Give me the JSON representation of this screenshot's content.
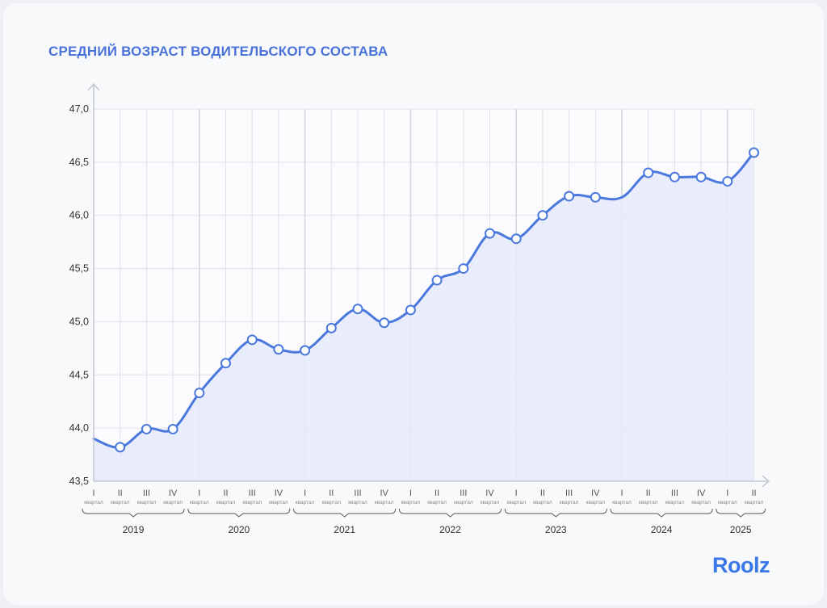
{
  "title": "СРЕДНИЙ ВОЗРАСТ ВОДИТЕЛЬСКОГО СОСТАВА",
  "logo": "Roolz",
  "colors": {
    "line": "#4a78dd",
    "area": "#e5eafb",
    "grid": "#dfe2e8",
    "axis": "#c3c8d1",
    "text": "#333333",
    "title": "#4a72d9",
    "brand": "#3b78e7"
  },
  "chart_data": {
    "type": "area",
    "title": "СРЕДНИЙ ВОЗРАСТ ВОДИТЕЛЬСКОГО СОСТАВА",
    "xlabel": "",
    "ylabel": "",
    "ylim": [
      43.5,
      47.0
    ],
    "yticks": [
      "43,5",
      "44,0",
      "44,5",
      "45,0",
      "45,5",
      "46,0",
      "46,5",
      "47,0"
    ],
    "grid": true,
    "quarter_sublabel": "квартал",
    "categories": [
      {
        "quarter": "I",
        "year": "2019"
      },
      {
        "quarter": "II",
        "year": "2019"
      },
      {
        "quarter": "III",
        "year": "2019"
      },
      {
        "quarter": "IV",
        "year": "2019"
      },
      {
        "quarter": "I",
        "year": "2020"
      },
      {
        "quarter": "II",
        "year": "2020"
      },
      {
        "quarter": "III",
        "year": "2020"
      },
      {
        "quarter": "IV",
        "year": "2020"
      },
      {
        "quarter": "I",
        "year": "2021"
      },
      {
        "quarter": "II",
        "year": "2021"
      },
      {
        "quarter": "III",
        "year": "2021"
      },
      {
        "quarter": "IV",
        "year": "2021"
      },
      {
        "quarter": "I",
        "year": "2022"
      },
      {
        "quarter": "II",
        "year": "2022"
      },
      {
        "quarter": "III",
        "year": "2022"
      },
      {
        "quarter": "IV",
        "year": "2022"
      },
      {
        "quarter": "I",
        "year": "2023"
      },
      {
        "quarter": "II",
        "year": "2023"
      },
      {
        "quarter": "III",
        "year": "2023"
      },
      {
        "quarter": "IV",
        "year": "2023"
      },
      {
        "quarter": "I",
        "year": "2024"
      },
      {
        "quarter": "II",
        "year": "2024"
      },
      {
        "quarter": "III",
        "year": "2024"
      },
      {
        "quarter": "IV",
        "year": "2024"
      },
      {
        "quarter": "I",
        "year": "2025"
      },
      {
        "quarter": "II",
        "year": "2025"
      }
    ],
    "years": [
      "2019",
      "2020",
      "2021",
      "2022",
      "2023",
      "2024",
      "2025"
    ],
    "values": [
      43.9,
      43.82,
      43.99,
      43.99,
      44.33,
      44.61,
      44.83,
      44.74,
      44.73,
      44.94,
      45.12,
      44.99,
      45.11,
      45.39,
      45.5,
      45.83,
      45.78,
      46.0,
      46.18,
      46.17,
      46.17,
      46.4,
      46.36,
      46.36,
      46.32,
      46.59
    ],
    "markers": [
      false,
      true,
      true,
      true,
      true,
      true,
      true,
      true,
      true,
      true,
      true,
      true,
      true,
      true,
      true,
      true,
      true,
      true,
      true,
      true,
      false,
      true,
      true,
      true,
      true,
      true
    ]
  }
}
